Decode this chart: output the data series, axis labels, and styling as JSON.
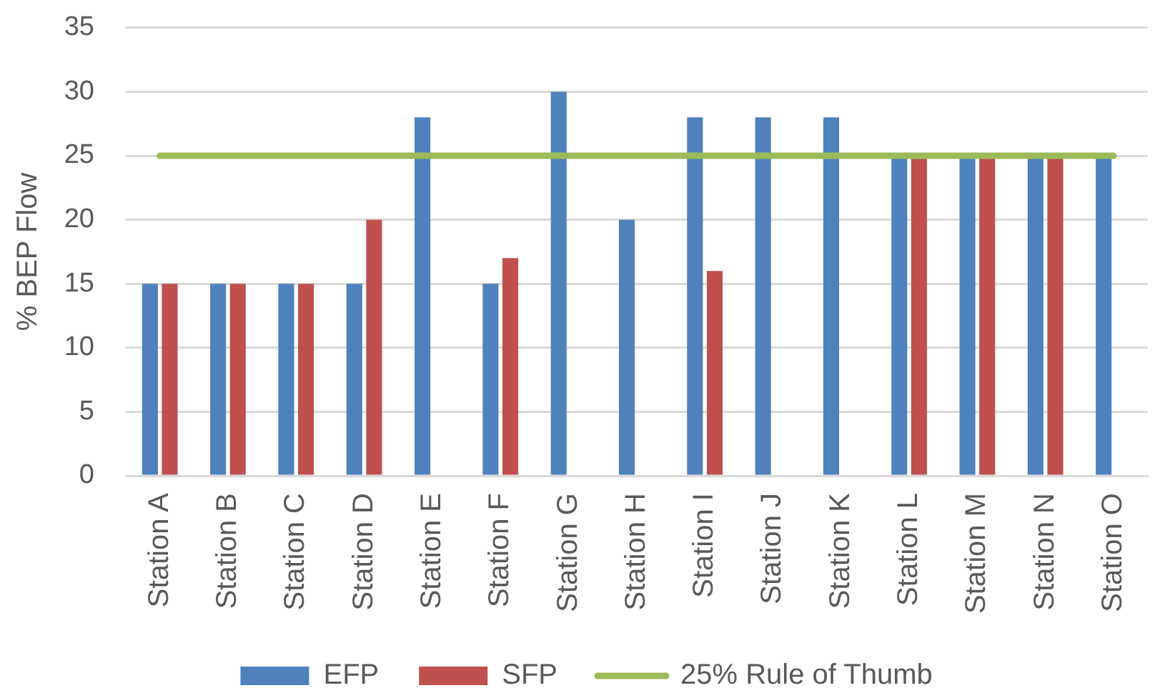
{
  "chart_data": {
    "type": "bar",
    "categories": [
      "Station A",
      "Station B",
      "Station C",
      "Station D",
      "Station E",
      "Station F",
      "Station G",
      "Station H",
      "Station I",
      "Station J",
      "Station K",
      "Station L",
      "Station M",
      "Station N",
      "Station O"
    ],
    "series": [
      {
        "name": "EFP",
        "color": "#4f81bd",
        "values": [
          15,
          15,
          15,
          15,
          28,
          15,
          30,
          20,
          28,
          28,
          28,
          25,
          25,
          25,
          25
        ]
      },
      {
        "name": "SFP",
        "color": "#c0504d",
        "values": [
          15,
          15,
          15,
          20,
          null,
          17,
          null,
          null,
          16,
          null,
          null,
          25,
          25,
          25,
          null
        ]
      },
      {
        "name": "25% Rule of Thumb",
        "type": "line",
        "color": "#9bbb59",
        "values": [
          25,
          25,
          25,
          25,
          25,
          25,
          25,
          25,
          25,
          25,
          25,
          25,
          25,
          25,
          25
        ]
      }
    ],
    "ylabel": "% BEP Flow",
    "ylim": [
      0,
      35
    ],
    "yticks": [
      0,
      5,
      10,
      15,
      20,
      25,
      30,
      35
    ],
    "grid": "y",
    "legend": "bottom"
  }
}
